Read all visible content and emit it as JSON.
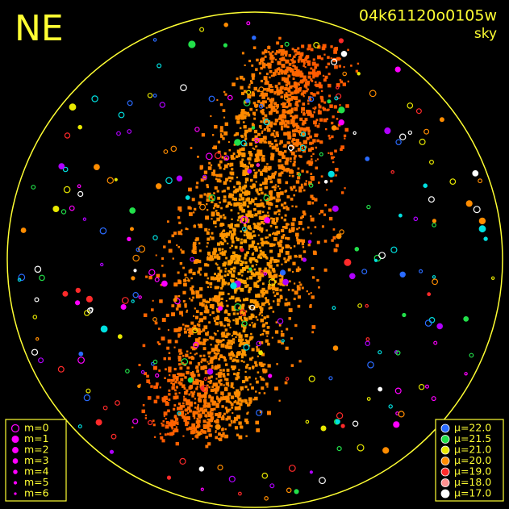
{
  "header": {
    "direction": "NE",
    "image_id": "04k61120o0105w",
    "label": "sky"
  },
  "magnitude_legend": {
    "color": "#ff00ff",
    "items": [
      "m=0",
      "m=1",
      "m=2",
      "m=3",
      "m=4",
      "m=5",
      "m=6"
    ]
  },
  "brightness_legend": {
    "items": [
      {
        "label": "μ=22.0",
        "color": "#2a6bff"
      },
      {
        "label": "μ=21.5",
        "color": "#22e04a"
      },
      {
        "label": "μ=21.0",
        "color": "#e8e800"
      },
      {
        "label": "μ=20.0",
        "color": "#ff8c00"
      },
      {
        "label": "μ=19.0",
        "color": "#ff2a2a"
      },
      {
        "label": "μ=18.0",
        "color": "#ff9090"
      },
      {
        "label": "μ=17.0",
        "color": "#ffffff"
      }
    ]
  }
}
